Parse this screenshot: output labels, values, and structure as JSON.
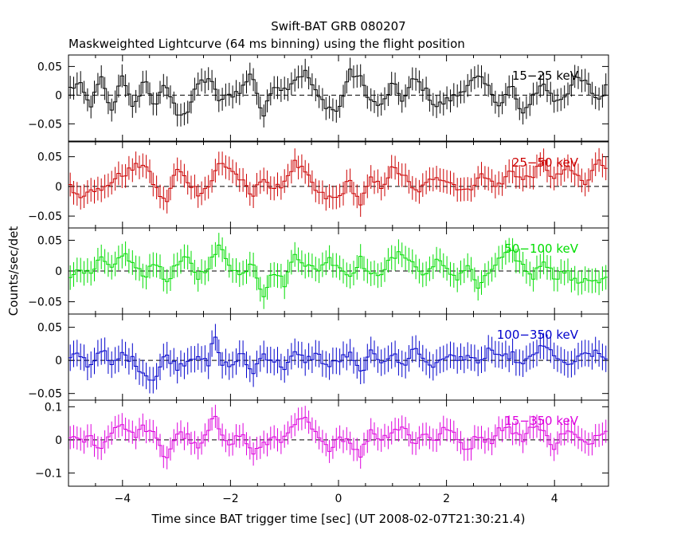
{
  "title": "Swift-BAT GRB 080207",
  "subtitle": "Maskweighted Lightcurve (64 ms binning) using the flight position",
  "ylabel": "Counts/sec/det",
  "xlabel": "Time since BAT trigger time [sec] (UT 2008-02-07T21:30:21.4)",
  "chart_data": {
    "type": "line",
    "style": "step-histogram with error bars, dashed zero line",
    "x_range": [
      -5.0,
      5.0
    ],
    "bin_width_s": 0.064,
    "x_ticks": [
      -4,
      -2,
      0,
      2,
      4
    ],
    "x_tick_labels": [
      "−4",
      "−2",
      "0",
      "2",
      "4"
    ],
    "panels": [
      {
        "label": "15−25 keV",
        "color": "#000000",
        "ylim": [
          -0.08,
          0.07
        ],
        "y_ticks": [
          -0.05,
          0,
          0.05
        ],
        "y_tick_labels": [
          "−0.05",
          "0",
          "0.05"
        ],
        "errbar": 0.02,
        "anchors": [
          [
            -5.0,
            0.01
          ],
          [
            -4.8,
            0.02
          ],
          [
            -4.6,
            -0.02
          ],
          [
            -4.4,
            0.03
          ],
          [
            -4.2,
            -0.03
          ],
          [
            -4.0,
            0.04
          ],
          [
            -3.8,
            -0.03
          ],
          [
            -3.6,
            0.03
          ],
          [
            -3.4,
            -0.02
          ],
          [
            -3.2,
            0.02
          ],
          [
            -3.0,
            -0.03
          ],
          [
            -2.8,
            -0.03
          ],
          [
            -2.6,
            0.02
          ],
          [
            -2.4,
            0.03
          ],
          [
            -2.2,
            -0.01
          ],
          [
            -2.0,
            0.0
          ],
          [
            -1.8,
            0.01
          ],
          [
            -1.6,
            0.04
          ],
          [
            -1.4,
            -0.04
          ],
          [
            -1.2,
            0.02
          ],
          [
            -1.0,
            0.01
          ],
          [
            -0.8,
            0.03
          ],
          [
            -0.6,
            0.04
          ],
          [
            -0.4,
            0.0
          ],
          [
            -0.2,
            -0.02
          ],
          [
            0.0,
            -0.03
          ],
          [
            0.2,
            0.04
          ],
          [
            0.4,
            0.03
          ],
          [
            0.6,
            -0.01
          ],
          [
            0.8,
            -0.02
          ],
          [
            1.0,
            0.02
          ],
          [
            1.2,
            -0.01
          ],
          [
            1.4,
            0.03
          ],
          [
            1.6,
            0.01
          ],
          [
            1.8,
            -0.02
          ],
          [
            2.0,
            -0.01
          ],
          [
            2.2,
            0.0
          ],
          [
            2.4,
            0.02
          ],
          [
            2.6,
            0.03
          ],
          [
            2.8,
            0.01
          ],
          [
            3.0,
            -0.02
          ],
          [
            3.2,
            0.02
          ],
          [
            3.4,
            -0.04
          ],
          [
            3.6,
            0.0
          ],
          [
            3.8,
            0.02
          ],
          [
            4.0,
            -0.01
          ],
          [
            4.2,
            0.0
          ],
          [
            4.4,
            0.03
          ],
          [
            4.6,
            0.02
          ],
          [
            4.8,
            -0.01
          ],
          [
            5.0,
            0.02
          ]
        ]
      },
      {
        "label": "25−50 keV",
        "color": "#cc0000",
        "ylim": [
          -0.07,
          0.075
        ],
        "y_ticks": [
          -0.05,
          0,
          0.05
        ],
        "y_tick_labels": [
          "−0.05",
          "0",
          "0.05"
        ],
        "errbar": 0.02,
        "anchors": [
          [
            -5.0,
            0.01
          ],
          [
            -4.8,
            -0.02
          ],
          [
            -4.6,
            0.0
          ],
          [
            -4.4,
            -0.01
          ],
          [
            -4.2,
            0.01
          ],
          [
            -4.0,
            0.02
          ],
          [
            -3.8,
            0.03
          ],
          [
            -3.6,
            0.04
          ],
          [
            -3.4,
            0.0
          ],
          [
            -3.2,
            -0.03
          ],
          [
            -3.0,
            0.03
          ],
          [
            -2.8,
            0.01
          ],
          [
            -2.6,
            -0.01
          ],
          [
            -2.4,
            0.0
          ],
          [
            -2.2,
            0.04
          ],
          [
            -2.0,
            0.03
          ],
          [
            -1.8,
            0.01
          ],
          [
            -1.6,
            -0.02
          ],
          [
            -1.4,
            0.02
          ],
          [
            -1.2,
            -0.01
          ],
          [
            -1.0,
            0.01
          ],
          [
            -0.8,
            0.04
          ],
          [
            -0.6,
            0.02
          ],
          [
            -0.4,
            -0.01
          ],
          [
            -0.2,
            -0.02
          ],
          [
            0.0,
            -0.02
          ],
          [
            0.2,
            0.01
          ],
          [
            0.4,
            -0.03
          ],
          [
            0.6,
            0.01
          ],
          [
            0.8,
            0.0
          ],
          [
            1.0,
            0.03
          ],
          [
            1.2,
            0.02
          ],
          [
            1.4,
            -0.01
          ],
          [
            1.6,
            0.0
          ],
          [
            1.8,
            0.02
          ],
          [
            2.0,
            0.01
          ],
          [
            2.2,
            0.0
          ],
          [
            2.4,
            -0.01
          ],
          [
            2.6,
            0.02
          ],
          [
            2.8,
            0.01
          ],
          [
            3.0,
            0.0
          ],
          [
            3.2,
            0.03
          ],
          [
            3.4,
            0.01
          ],
          [
            3.6,
            0.02
          ],
          [
            3.8,
            0.04
          ],
          [
            4.0,
            0.01
          ],
          [
            4.2,
            0.03
          ],
          [
            4.4,
            0.02
          ],
          [
            4.6,
            0.0
          ],
          [
            4.8,
            0.05
          ],
          [
            5.0,
            0.03
          ]
        ]
      },
      {
        "label": "50−100 keV",
        "color": "#00dd00",
        "ylim": [
          -0.07,
          0.07
        ],
        "y_ticks": [
          -0.05,
          0,
          0.05
        ],
        "y_tick_labels": [
          "−0.05",
          "0",
          "0.05"
        ],
        "errbar": 0.02,
        "anchors": [
          [
            -5.0,
            -0.02
          ],
          [
            -4.8,
            0.01
          ],
          [
            -4.6,
            -0.01
          ],
          [
            -4.4,
            0.02
          ],
          [
            -4.2,
            0.0
          ],
          [
            -4.0,
            0.03
          ],
          [
            -3.8,
            0.01
          ],
          [
            -3.6,
            -0.01
          ],
          [
            -3.4,
            0.02
          ],
          [
            -3.2,
            -0.02
          ],
          [
            -3.0,
            0.01
          ],
          [
            -2.8,
            0.02
          ],
          [
            -2.6,
            -0.01
          ],
          [
            -2.4,
            0.01
          ],
          [
            -2.2,
            0.04
          ],
          [
            -2.0,
            0.01
          ],
          [
            -1.8,
            -0.01
          ],
          [
            -1.6,
            0.02
          ],
          [
            -1.4,
            -0.04
          ],
          [
            -1.2,
            0.0
          ],
          [
            -1.0,
            -0.02
          ],
          [
            -0.8,
            0.03
          ],
          [
            -0.6,
            0.01
          ],
          [
            -0.4,
            0.0
          ],
          [
            -0.2,
            0.02
          ],
          [
            0.0,
            0.01
          ],
          [
            0.2,
            -0.01
          ],
          [
            0.4,
            0.02
          ],
          [
            0.6,
            -0.01
          ],
          [
            0.8,
            0.0
          ],
          [
            1.0,
            0.02
          ],
          [
            1.2,
            0.03
          ],
          [
            1.4,
            0.01
          ],
          [
            1.6,
            -0.01
          ],
          [
            1.8,
            0.02
          ],
          [
            2.0,
            0.0
          ],
          [
            2.2,
            -0.01
          ],
          [
            2.4,
            0.01
          ],
          [
            2.6,
            -0.03
          ],
          [
            2.8,
            0.0
          ],
          [
            3.0,
            0.02
          ],
          [
            3.2,
            0.03
          ],
          [
            3.4,
            0.01
          ],
          [
            3.6,
            -0.01
          ],
          [
            3.8,
            0.02
          ],
          [
            4.0,
            -0.01
          ],
          [
            4.2,
            0.0
          ],
          [
            4.4,
            -0.02
          ],
          [
            4.6,
            -0.01
          ],
          [
            4.8,
            -0.02
          ],
          [
            5.0,
            -0.01
          ]
        ]
      },
      {
        "label": "100−350 keV",
        "color": "#0000cc",
        "ylim": [
          -0.06,
          0.07
        ],
        "y_ticks": [
          -0.05,
          0,
          0.05
        ],
        "y_tick_labels": [
          "−0.05",
          "0",
          "0.05"
        ],
        "errbar": 0.02,
        "anchors": [
          [
            -5.0,
            0.0
          ],
          [
            -4.8,
            0.01
          ],
          [
            -4.6,
            -0.01
          ],
          [
            -4.4,
            0.02
          ],
          [
            -4.2,
            -0.01
          ],
          [
            -4.0,
            0.01
          ],
          [
            -3.8,
            0.0
          ],
          [
            -3.6,
            -0.02
          ],
          [
            -3.4,
            -0.03
          ],
          [
            -3.2,
            0.01
          ],
          [
            -3.0,
            -0.01
          ],
          [
            -2.8,
            0.0
          ],
          [
            -2.6,
            0.01
          ],
          [
            -2.4,
            -0.01
          ],
          [
            -2.3,
            0.045
          ],
          [
            -2.2,
            0.0
          ],
          [
            -2.0,
            -0.01
          ],
          [
            -1.8,
            0.01
          ],
          [
            -1.6,
            -0.02
          ],
          [
            -1.4,
            0.01
          ],
          [
            -1.2,
            0.0
          ],
          [
            -1.0,
            -0.01
          ],
          [
            -0.8,
            0.01
          ],
          [
            -0.6,
            0.0
          ],
          [
            -0.4,
            0.01
          ],
          [
            -0.2,
            -0.01
          ],
          [
            0.0,
            0.0
          ],
          [
            0.2,
            0.01
          ],
          [
            0.4,
            -0.02
          ],
          [
            0.6,
            0.01
          ],
          [
            0.8,
            0.0
          ],
          [
            1.0,
            0.01
          ],
          [
            1.2,
            -0.01
          ],
          [
            1.4,
            0.02
          ],
          [
            1.6,
            0.0
          ],
          [
            1.8,
            -0.01
          ],
          [
            2.0,
            0.01
          ],
          [
            2.2,
            0.0
          ],
          [
            2.4,
            0.01
          ],
          [
            2.6,
            -0.01
          ],
          [
            2.8,
            0.02
          ],
          [
            3.0,
            0.0
          ],
          [
            3.2,
            0.01
          ],
          [
            3.4,
            -0.01
          ],
          [
            3.6,
            0.01
          ],
          [
            3.8,
            0.02
          ],
          [
            4.0,
            0.01
          ],
          [
            4.2,
            -0.01
          ],
          [
            4.4,
            0.0
          ],
          [
            4.6,
            0.01
          ],
          [
            4.8,
            0.01
          ],
          [
            5.0,
            0.0
          ]
        ]
      },
      {
        "label": "15−350 keV",
        "color": "#dd00dd",
        "ylim": [
          -0.14,
          0.12
        ],
        "y_ticks": [
          -0.1,
          0,
          0.1
        ],
        "y_tick_labels": [
          "−0.1",
          "0",
          "0.1"
        ],
        "errbar": 0.035,
        "anchors": [
          [
            -5.0,
            0.02
          ],
          [
            -4.8,
            -0.01
          ],
          [
            -4.6,
            0.01
          ],
          [
            -4.4,
            -0.03
          ],
          [
            -4.2,
            0.03
          ],
          [
            -4.0,
            0.05
          ],
          [
            -3.8,
            0.01
          ],
          [
            -3.6,
            0.04
          ],
          [
            -3.4,
            0.01
          ],
          [
            -3.2,
            -0.06
          ],
          [
            -3.0,
            0.02
          ],
          [
            -2.8,
            0.01
          ],
          [
            -2.6,
            -0.03
          ],
          [
            -2.4,
            0.03
          ],
          [
            -2.3,
            0.07
          ],
          [
            -2.2,
            0.03
          ],
          [
            -2.0,
            -0.01
          ],
          [
            -1.8,
            0.02
          ],
          [
            -1.6,
            -0.04
          ],
          [
            -1.4,
            -0.02
          ],
          [
            -1.2,
            0.01
          ],
          [
            -1.0,
            0.0
          ],
          [
            -0.8,
            0.05
          ],
          [
            -0.6,
            0.06
          ],
          [
            -0.4,
            0.01
          ],
          [
            -0.2,
            -0.03
          ],
          [
            0.0,
            0.01
          ],
          [
            0.2,
            0.0
          ],
          [
            0.4,
            -0.05
          ],
          [
            0.6,
            0.03
          ],
          [
            0.8,
            0.0
          ],
          [
            1.0,
            0.03
          ],
          [
            1.2,
            0.04
          ],
          [
            1.4,
            -0.01
          ],
          [
            1.6,
            0.02
          ],
          [
            1.8,
            0.0
          ],
          [
            2.0,
            0.04
          ],
          [
            2.2,
            0.0
          ],
          [
            2.4,
            -0.03
          ],
          [
            2.6,
            0.02
          ],
          [
            2.8,
            -0.01
          ],
          [
            3.0,
            0.04
          ],
          [
            3.2,
            0.03
          ],
          [
            3.4,
            0.0
          ],
          [
            3.6,
            0.05
          ],
          [
            3.8,
            0.02
          ],
          [
            4.0,
            -0.02
          ],
          [
            4.2,
            0.03
          ],
          [
            4.4,
            0.01
          ],
          [
            4.6,
            -0.02
          ],
          [
            4.8,
            0.02
          ],
          [
            5.0,
            0.04
          ]
        ]
      }
    ]
  }
}
